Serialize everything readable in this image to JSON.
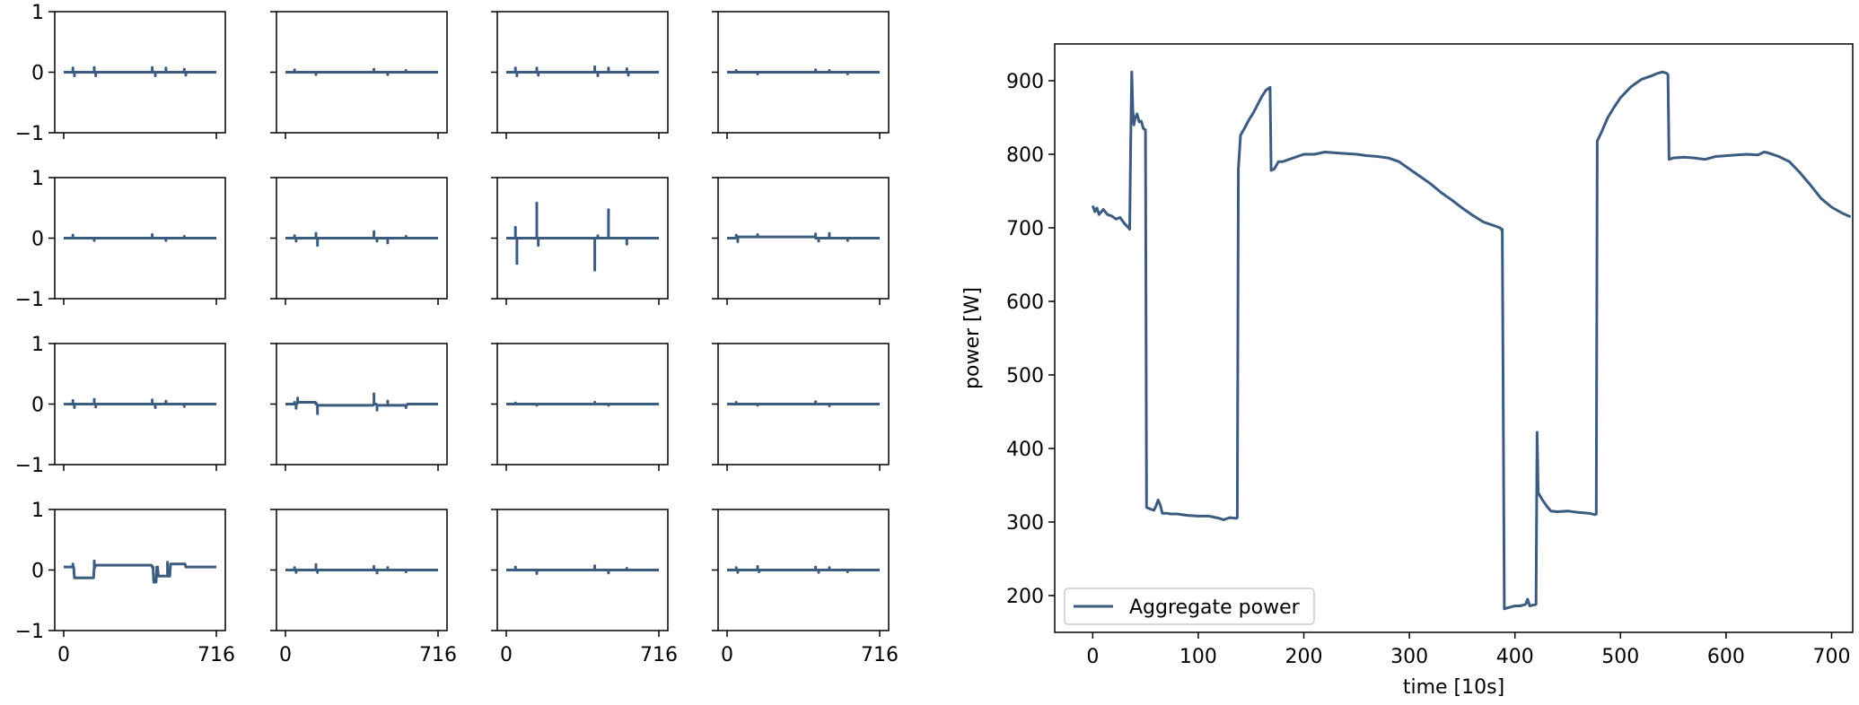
{
  "chart_data": [
    {
      "type": "line",
      "description_role": "small-multiples",
      "layout": "4x4 grid",
      "ylim": [
        -1,
        1
      ],
      "yticks": [
        "1",
        "0",
        "−1"
      ],
      "xlim": [
        0,
        716
      ],
      "xticks": [
        "0",
        "716"
      ],
      "series_color": "#3b5b80",
      "panels": [
        {
          "baseline": 0,
          "segments": [],
          "spikes": [
            [
              6,
              0.07
            ],
            [
              7,
              -0.06
            ],
            [
              20,
              0.08
            ],
            [
              21,
              -0.06
            ],
            [
              58,
              0.08
            ],
            [
              60,
              -0.06
            ],
            [
              67,
              0.07
            ],
            [
              79,
              0.05
            ],
            [
              80,
              -0.05
            ]
          ]
        },
        {
          "baseline": 0,
          "segments": [],
          "spikes": [
            [
              6,
              0.04
            ],
            [
              20,
              -0.04
            ],
            [
              58,
              0.05
            ],
            [
              67,
              -0.04
            ],
            [
              79,
              0.03
            ]
          ]
        },
        {
          "baseline": 0,
          "segments": [],
          "spikes": [
            [
              6,
              0.07
            ],
            [
              7,
              -0.06
            ],
            [
              20,
              0.07
            ],
            [
              21,
              -0.05
            ],
            [
              58,
              0.09
            ],
            [
              60,
              -0.06
            ],
            [
              67,
              0.07
            ],
            [
              79,
              0.06
            ],
            [
              80,
              -0.05
            ]
          ]
        },
        {
          "baseline": 0,
          "segments": [],
          "spikes": [
            [
              6,
              0.03
            ],
            [
              20,
              -0.03
            ],
            [
              58,
              0.04
            ],
            [
              67,
              0.03
            ],
            [
              79,
              -0.03
            ]
          ]
        },
        {
          "baseline": 0,
          "segments": [],
          "spikes": [
            [
              6,
              0.05
            ],
            [
              20,
              -0.04
            ],
            [
              58,
              0.06
            ],
            [
              67,
              -0.04
            ],
            [
              79,
              0.03
            ]
          ]
        },
        {
          "baseline": 0,
          "segments": [],
          "spikes": [
            [
              6,
              0.04
            ],
            [
              7,
              -0.05
            ],
            [
              20,
              0.08
            ],
            [
              21,
              -0.12
            ],
            [
              58,
              0.11
            ],
            [
              60,
              -0.05
            ],
            [
              67,
              -0.08
            ],
            [
              79,
              0.03
            ]
          ]
        },
        {
          "baseline": 0,
          "segments": [],
          "spikes": [
            [
              6,
              0.18
            ],
            [
              7,
              -0.42
            ],
            [
              20,
              0.58
            ],
            [
              21,
              -0.12
            ],
            [
              58,
              -0.53
            ],
            [
              60,
              0.04
            ],
            [
              67,
              0.47
            ],
            [
              79,
              -0.1
            ]
          ]
        },
        {
          "baseline": 0,
          "segments": [
            [
              6,
              58,
              0.02
            ]
          ],
          "spikes": [
            [
              6,
              0.05
            ],
            [
              7,
              -0.06
            ],
            [
              20,
              0.06
            ],
            [
              58,
              0.07
            ],
            [
              60,
              -0.05
            ],
            [
              67,
              0.08
            ],
            [
              79,
              -0.04
            ]
          ]
        },
        {
          "baseline": 0,
          "segments": [],
          "spikes": [
            [
              6,
              0.06
            ],
            [
              7,
              -0.06
            ],
            [
              20,
              0.08
            ],
            [
              21,
              -0.05
            ],
            [
              58,
              0.07
            ],
            [
              60,
              -0.06
            ],
            [
              67,
              0.05
            ],
            [
              79,
              -0.04
            ]
          ]
        },
        {
          "baseline": 0,
          "segments": [
            [
              8,
              20,
              0.03
            ],
            [
              21,
              58,
              -0.02
            ],
            [
              60,
              80,
              -0.02
            ]
          ],
          "spikes": [
            [
              6,
              0.03
            ],
            [
              7,
              -0.07
            ],
            [
              8,
              0.1
            ],
            [
              20,
              0.02
            ],
            [
              21,
              -0.16
            ],
            [
              58,
              0.17
            ],
            [
              60,
              -0.1
            ],
            [
              67,
              0.05
            ],
            [
              79,
              -0.06
            ]
          ]
        },
        {
          "baseline": 0,
          "segments": [],
          "spikes": [
            [
              6,
              0.02
            ],
            [
              20,
              -0.02
            ],
            [
              58,
              0.03
            ],
            [
              67,
              -0.02
            ]
          ]
        },
        {
          "baseline": 0,
          "segments": [],
          "spikes": [
            [
              6,
              0.03
            ],
            [
              20,
              -0.02
            ],
            [
              58,
              0.04
            ],
            [
              67,
              -0.03
            ]
          ]
        },
        {
          "baseline": 0.05,
          "segments": [
            [
              0,
              6,
              0.05
            ],
            [
              7,
              20,
              -0.13
            ],
            [
              21,
              58,
              0.08
            ],
            [
              59,
              61,
              -0.2
            ],
            [
              62,
              70,
              -0.1
            ],
            [
              70,
              80,
              0.1
            ],
            [
              80,
              100,
              0.05
            ]
          ],
          "spikes": [
            [
              6,
              0.1
            ],
            [
              20,
              0.15
            ],
            [
              58,
              0.06
            ],
            [
              68,
              0.13
            ]
          ]
        },
        {
          "baseline": 0,
          "segments": [],
          "spikes": [
            [
              6,
              0.04
            ],
            [
              7,
              -0.04
            ],
            [
              20,
              0.09
            ],
            [
              21,
              -0.04
            ],
            [
              58,
              0.06
            ],
            [
              60,
              -0.05
            ],
            [
              67,
              0.04
            ],
            [
              79,
              -0.03
            ]
          ]
        },
        {
          "baseline": 0,
          "segments": [],
          "spikes": [
            [
              6,
              0.05
            ],
            [
              20,
              -0.06
            ],
            [
              58,
              0.07
            ],
            [
              67,
              -0.05
            ],
            [
              79,
              0.03
            ]
          ]
        },
        {
          "baseline": 0,
          "segments": [],
          "spikes": [
            [
              6,
              0.04
            ],
            [
              7,
              -0.04
            ],
            [
              20,
              0.06
            ],
            [
              21,
              -0.03
            ],
            [
              58,
              0.05
            ],
            [
              60,
              -0.04
            ],
            [
              67,
              0.04
            ],
            [
              79,
              -0.03
            ]
          ]
        }
      ]
    },
    {
      "type": "line",
      "xlabel": "time [10s]",
      "ylabel": "power [W]",
      "xlim": [
        -36,
        720
      ],
      "ylim": [
        150,
        950
      ],
      "xticks": [
        0,
        100,
        200,
        300,
        400,
        500,
        600,
        700
      ],
      "yticks": [
        200,
        300,
        400,
        500,
        600,
        700,
        800,
        900
      ],
      "legend": "lower left",
      "series": [
        {
          "name": "Aggregate power",
          "color": "#3b5b80",
          "points": [
            [
              0,
              730
            ],
            [
              2,
              722
            ],
            [
              4,
              727
            ],
            [
              6,
              718
            ],
            [
              10,
              725
            ],
            [
              14,
              718
            ],
            [
              18,
              716
            ],
            [
              22,
              712
            ],
            [
              26,
              714
            ],
            [
              30,
              706
            ],
            [
              34,
              700
            ],
            [
              35,
              698
            ],
            [
              36,
              820
            ],
            [
              37,
              912
            ],
            [
              38,
              860
            ],
            [
              39,
              840
            ],
            [
              40,
              848
            ],
            [
              42,
              855
            ],
            [
              44,
              844
            ],
            [
              46,
              845
            ],
            [
              48,
              835
            ],
            [
              50,
              833
            ],
            [
              51,
              320
            ],
            [
              54,
              318
            ],
            [
              58,
              316
            ],
            [
              60,
              322
            ],
            [
              62,
              330
            ],
            [
              64,
              323
            ],
            [
              66,
              312
            ],
            [
              70,
              312
            ],
            [
              74,
              311
            ],
            [
              80,
              311
            ],
            [
              90,
              309
            ],
            [
              100,
              308
            ],
            [
              110,
              308
            ],
            [
              120,
              305
            ],
            [
              124,
              303
            ],
            [
              130,
              306
            ],
            [
              136,
              305
            ],
            [
              137,
              306
            ],
            [
              138,
              780
            ],
            [
              140,
              826
            ],
            [
              144,
              836
            ],
            [
              148,
              847
            ],
            [
              152,
              856
            ],
            [
              156,
              867
            ],
            [
              160,
              878
            ],
            [
              164,
              887
            ],
            [
              168,
              891
            ],
            [
              169,
              778
            ],
            [
              172,
              780
            ],
            [
              176,
              790
            ],
            [
              180,
              790
            ],
            [
              190,
              795
            ],
            [
              200,
              800
            ],
            [
              210,
              800
            ],
            [
              220,
              803
            ],
            [
              230,
              802
            ],
            [
              240,
              801
            ],
            [
              250,
              800
            ],
            [
              260,
              798
            ],
            [
              270,
              797
            ],
            [
              280,
              795
            ],
            [
              290,
              790
            ],
            [
              300,
              780
            ],
            [
              310,
              770
            ],
            [
              320,
              760
            ],
            [
              330,
              748
            ],
            [
              340,
              738
            ],
            [
              350,
              727
            ],
            [
              360,
              717
            ],
            [
              370,
              708
            ],
            [
              380,
              703
            ],
            [
              386,
              700
            ],
            [
              387,
              698
            ],
            [
              388,
              698
            ],
            [
              390,
              182
            ],
            [
              395,
              184
            ],
            [
              400,
              186
            ],
            [
              405,
              186
            ],
            [
              410,
              188
            ],
            [
              412,
              195
            ],
            [
              414,
              186
            ],
            [
              420,
              188
            ],
            [
              421,
              422
            ],
            [
              422,
              340
            ],
            [
              426,
              330
            ],
            [
              430,
              322
            ],
            [
              434,
              315
            ],
            [
              440,
              314
            ],
            [
              450,
              315
            ],
            [
              460,
              313
            ],
            [
              470,
              312
            ],
            [
              476,
              310
            ],
            [
              477,
              311
            ],
            [
              478,
              818
            ],
            [
              482,
              830
            ],
            [
              488,
              850
            ],
            [
              494,
              864
            ],
            [
              500,
              877
            ],
            [
              510,
              892
            ],
            [
              520,
              902
            ],
            [
              530,
              907
            ],
            [
              535,
              910
            ],
            [
              540,
              912
            ],
            [
              544,
              910
            ],
            [
              545,
              908
            ],
            [
              546,
              793
            ],
            [
              550,
              795
            ],
            [
              560,
              796
            ],
            [
              570,
              795
            ],
            [
              580,
              793
            ],
            [
              590,
              797
            ],
            [
              600,
              798
            ],
            [
              610,
              799
            ],
            [
              620,
              800
            ],
            [
              630,
              799
            ],
            [
              636,
              803
            ],
            [
              640,
              802
            ],
            [
              650,
              797
            ],
            [
              660,
              790
            ],
            [
              670,
              775
            ],
            [
              680,
              758
            ],
            [
              690,
              740
            ],
            [
              700,
              728
            ],
            [
              710,
              720
            ],
            [
              718,
              715
            ]
          ]
        }
      ]
    }
  ]
}
